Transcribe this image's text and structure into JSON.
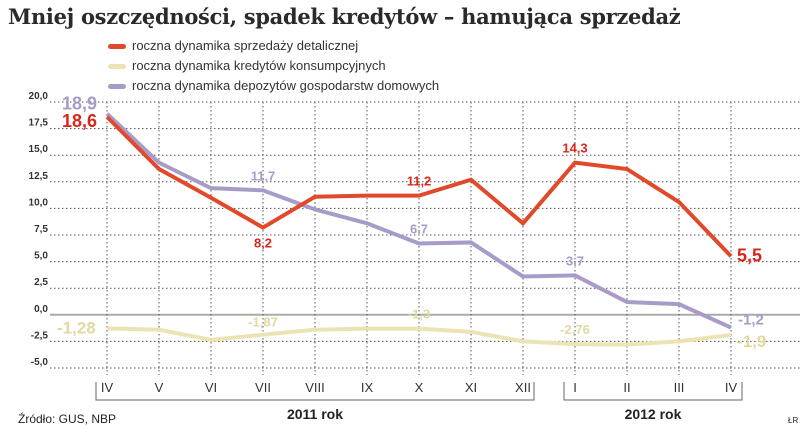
{
  "title": "Mniej oszczędności, spadek kredytów – hamująca sprzedaż",
  "source": "Źródło: GUS, NBP",
  "author": "ŁR",
  "chart_data": {
    "type": "line",
    "title": "Mniej oszczędności, spadek kredytów – hamująca sprzedaż",
    "categories": [
      "IV",
      "V",
      "VI",
      "VII",
      "VIII",
      "IX",
      "X",
      "XI",
      "XII",
      "I",
      "II",
      "III",
      "IV"
    ],
    "year_groups": [
      {
        "label": "2011 rok",
        "from": 0,
        "to": 8
      },
      {
        "label": "2012 rok",
        "from": 9,
        "to": 12
      }
    ],
    "ylim": [
      -5,
      20
    ],
    "yticks": [
      20,
      17.5,
      15,
      12.5,
      10,
      7.5,
      5,
      2.5,
      0,
      -2.5,
      -5
    ],
    "ytick_labels": [
      "20,0",
      "17,5",
      "15,0",
      "12,5",
      "10,0",
      "7,5",
      "5,0",
      "2,5",
      "0,0",
      "-2,5",
      "-5,0"
    ],
    "grid": true,
    "legend_position": "top-left",
    "series": [
      {
        "name": "roczna dynamika sprzedaży detalicznej",
        "color": "#e04a2a",
        "values": [
          18.6,
          13.7,
          11.0,
          8.2,
          11.1,
          11.2,
          11.2,
          12.7,
          8.6,
          14.3,
          13.7,
          10.6,
          5.5
        ]
      },
      {
        "name": "roczna dynamika kredytów konsumpcyjnych",
        "color": "#ece3b4",
        "values": [
          -1.28,
          -1.4,
          -2.35,
          -1.87,
          -1.4,
          -1.3,
          -1.3,
          -1.6,
          -2.5,
          -2.76,
          -2.8,
          -2.5,
          -1.9
        ]
      },
      {
        "name": "roczna dynamika depozytów gospodarstw domowych",
        "color": "#a99bc8",
        "values": [
          18.9,
          14.3,
          11.9,
          11.7,
          9.9,
          8.6,
          6.7,
          6.8,
          3.6,
          3.7,
          1.2,
          1.0,
          -1.2
        ]
      }
    ],
    "annotations": [
      {
        "series": 0,
        "index": 0,
        "text": "18,6",
        "color": "#d9251c"
      },
      {
        "series": 0,
        "index": 3,
        "text": "8,2",
        "color": "#d9251c"
      },
      {
        "series": 0,
        "index": 6,
        "text": "11,2",
        "color": "#d9251c"
      },
      {
        "series": 0,
        "index": 9,
        "text": "14,3",
        "color": "#d9251c"
      },
      {
        "series": 0,
        "index": 12,
        "text": "5,5",
        "color": "#d9251c"
      },
      {
        "series": 2,
        "index": 0,
        "text": "18,9",
        "color": "#a99bc8"
      },
      {
        "series": 2,
        "index": 3,
        "text": "11,7",
        "color": "#a99bc8"
      },
      {
        "series": 2,
        "index": 6,
        "text": "6,7",
        "color": "#a99bc8"
      },
      {
        "series": 2,
        "index": 9,
        "text": "3,7",
        "color": "#a99bc8"
      },
      {
        "series": 2,
        "index": 12,
        "text": "-1,2",
        "color": "#a99bc8"
      },
      {
        "series": 1,
        "index": 0,
        "text": "-1,28",
        "color": "#e2d8a0"
      },
      {
        "series": 1,
        "index": 3,
        "text": "-1,87",
        "color": "#e2d8a0"
      },
      {
        "series": 1,
        "index": 6,
        "text": "-1,3",
        "color": "#e2d8a0"
      },
      {
        "series": 1,
        "index": 9,
        "text": "-2,76",
        "color": "#e2d8a0"
      },
      {
        "series": 1,
        "index": 12,
        "text": "-1,9",
        "color": "#e2d8a0"
      }
    ]
  }
}
